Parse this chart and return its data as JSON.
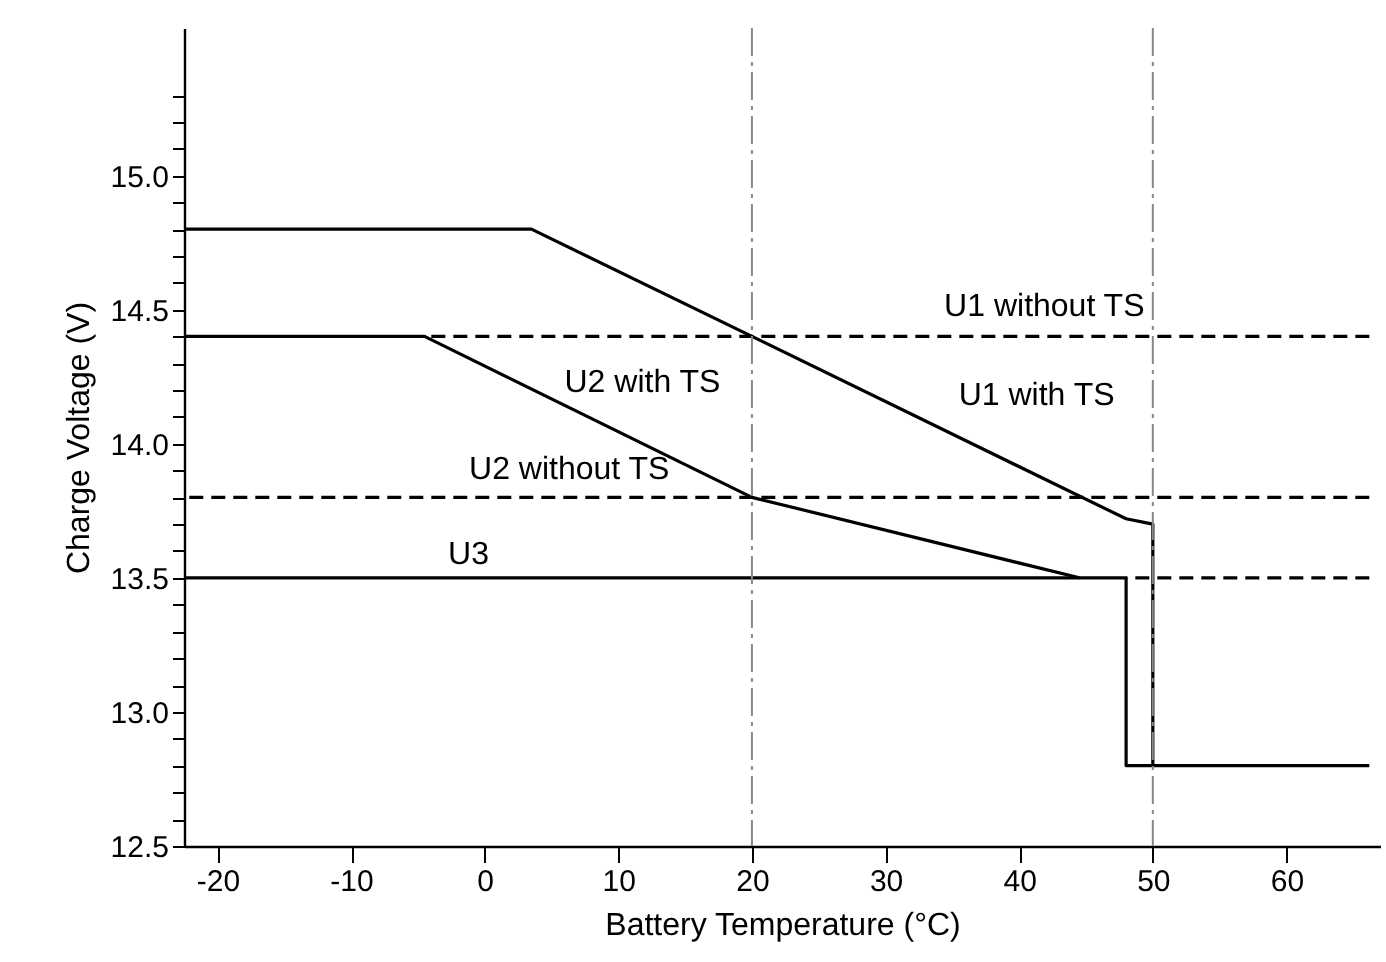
{
  "chart_data": {
    "type": "line",
    "xlabel": "Battery Temperature (°C)",
    "ylabel": "Charge Voltage (V)",
    "xlim": [
      -22.5,
      67
    ],
    "xticks": [
      -20,
      -10,
      0,
      10,
      20,
      30,
      40,
      50,
      60
    ],
    "ylim": [
      12.5,
      15.55
    ],
    "yticks": [
      12.5,
      {
        "value": 12.6,
        "label": null
      },
      {
        "value": 12.7,
        "label": null
      },
      {
        "value": 12.8,
        "label": null
      },
      {
        "value": 12.9,
        "label": null
      },
      {
        "value": 13,
        "label": "13.0"
      },
      {
        "value": 13.1,
        "label": null
      },
      {
        "value": 13.2,
        "label": null
      },
      {
        "value": 13.3,
        "label": null
      },
      {
        "value": 13.4,
        "label": null
      },
      13.5,
      {
        "value": 13.6,
        "label": null
      },
      {
        "value": 13.7,
        "label": null
      },
      {
        "value": 13.8,
        "label": null
      },
      {
        "value": 13.9,
        "label": null
      },
      {
        "value": 14,
        "label": "14.0"
      },
      {
        "value": 14.1,
        "label": null
      },
      {
        "value": 14.2,
        "label": null
      },
      {
        "value": 14.3,
        "label": null
      },
      {
        "value": 14.4,
        "label": null
      },
      14.5,
      {
        "value": 14.6,
        "label": null
      },
      {
        "value": 14.7,
        "label": null
      },
      {
        "value": 14.8,
        "label": null
      },
      {
        "value": 14.9,
        "label": null
      },
      {
        "value": 15,
        "label": "15.0"
      },
      {
        "value": 15.1,
        "label": null
      },
      {
        "value": 15.2,
        "label": null
      },
      {
        "value": 15.3,
        "label": null
      }
    ],
    "grid": false,
    "marker": "none",
    "series": [
      {
        "name": "U1 without TS",
        "color": "#000000",
        "line_style": "dashed",
        "x": [
          -4.5,
          66.2
        ],
        "values": [
          14.4,
          14.4
        ]
      },
      {
        "name": "U2 without TS",
        "color": "#000000",
        "line_style": "dashed",
        "x": [
          -22.5,
          66.2
        ],
        "values": [
          13.8,
          13.8
        ]
      },
      {
        "color": "#000000",
        "line_style": "dashed",
        "x": [
          48,
          66.2
        ],
        "values": [
          13.5,
          13.5
        ]
      },
      {
        "name": "U1 with TS",
        "color": "#000000",
        "line_style": "solid",
        "x": [
          -22.5,
          3.5,
          20,
          48,
          50,
          50
        ],
        "values": [
          14.8,
          14.8,
          14.4,
          13.72,
          13.7,
          12.8
        ]
      },
      {
        "name": "U2 with TS",
        "color": "#000000",
        "line_style": "solid",
        "x": [
          -22.5,
          -4.5,
          20,
          44.5
        ],
        "values": [
          14.4,
          14.4,
          13.8,
          13.5
        ]
      },
      {
        "name": "U3",
        "color": "#000000",
        "line_style": "solid",
        "x": [
          -22.5,
          48,
          48,
          66.2
        ],
        "values": [
          13.5,
          13.5,
          12.8,
          12.8
        ]
      }
    ],
    "ref_lines": [
      {
        "axis": "x",
        "value": 20,
        "color": "#888888",
        "line_style": "dashed"
      },
      {
        "axis": "x",
        "value": 50,
        "color": "#888888",
        "line_style": "dashed"
      }
    ]
  }
}
